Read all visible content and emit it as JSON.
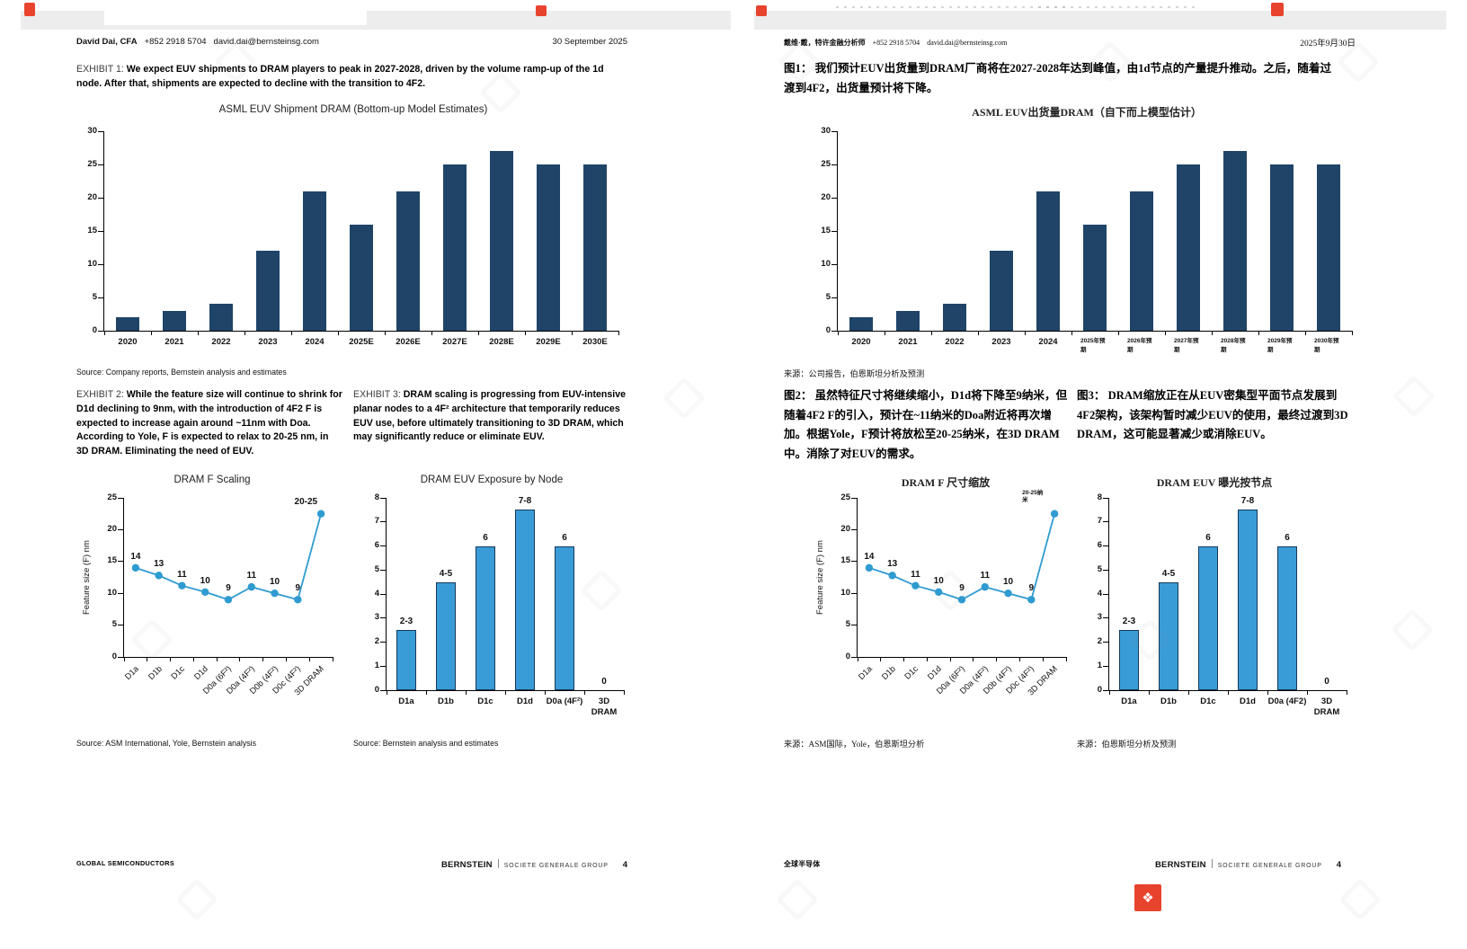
{
  "colors": {
    "navy_bar": "#1f4468",
    "blue_accent": "#2f9bd1",
    "blue_bar": "#3a9cd6",
    "bar_stroke": "#16395c",
    "logo_red": "#e8432d"
  },
  "icons": {
    "immersive_translate_logo": "❖"
  },
  "pages": {
    "en": {
      "header": {
        "analyst": "David Dai, CFA",
        "phone": "+852 2918 5704",
        "email": "david.dai@bernsteinsg.com",
        "date": "30 September 2025"
      },
      "exhibit1": {
        "label": "EXHIBIT 1:",
        "text": "We expect EUV shipments to DRAM players to peak in 2027-2028, driven by the volume ramp-up of the 1d node. After that, shipments are expected to decline with the transition to 4F2."
      },
      "source1": "Source: Company reports, Bernstein analysis and estimates",
      "exhibit2": {
        "label": "EXHIBIT 2:",
        "text": "While the feature size will continue to shrink for D1d declining to 9nm, with the introduction of 4F2 F is expected to increase again around ~11nm with Doa. According to Yole, F is expected to relax to 20-25 nm, in 3D DRAM. Eliminating the need of EUV."
      },
      "exhibit3": {
        "label": "EXHIBIT 3:",
        "text": "DRAM scaling is progressing from EUV-intensive planar nodes to a 4F² architecture that temporarily reduces EUV use, before ultimately transitioning to 3D DRAM, which may significantly reduce or eliminate EUV."
      },
      "source2": "Source: ASM International, Yole, Bernstein analysis",
      "source3": "Source: Bernstein analysis and estimates",
      "footer": {
        "left": "GLOBAL SEMICONDUCTORS",
        "brand": "BERNSTEIN",
        "group": "SOCIETE GENERALE GROUP",
        "page": "4"
      }
    },
    "zh": {
      "header": {
        "analyst": "戴维·戴，特许金融分析师",
        "phone": "+852 2918 5704",
        "email": "david.dai@bernsteinsg.com",
        "date": "2025年9月30日"
      },
      "exhibit1": {
        "label": "图1：",
        "text": "我们预计EUV出货量到DRAM厂商将在2027-2028年达到峰值，由1d节点的产量提升推动。之后，随着过渡到4F2，出货量预计将下降。"
      },
      "source1": "来源：公司报告，伯恩斯坦分析及预测",
      "exhibit2": {
        "label": "图2：",
        "text": "虽然特征尺寸将继续缩小，D1d将下降至9纳米，但随着4F2 F的引入，预计在~11纳米的Doa附近将再次增加。根据Yole，F预计将放松至20-25纳米，在3D DRAM中。消除了对EUV的需求。"
      },
      "exhibit3": {
        "label": "图3：",
        "text": "DRAM缩放正在从EUV密集型平面节点发展到4F2架构，该架构暂时减少EUV的使用，最终过渡到3D DRAM，这可能显著减少或消除EUV。"
      },
      "source2": "来源：ASM国际，Yole，伯恩斯坦分析",
      "source3": "来源：伯恩斯坦分析及预测",
      "footer": {
        "left": "全球半导体",
        "brand": "BERNSTEIN",
        "group": "SOCIETE GENERALE GROUP",
        "page": "4"
      }
    }
  },
  "chart_data": [
    {
      "id": "en_shipment",
      "type": "bar",
      "title": "ASML EUV Shipment DRAM (Bottom-up Model Estimates)",
      "categories": [
        "2020",
        "2021",
        "2022",
        "2023",
        "2024",
        "2025E",
        "2026E",
        "2027E",
        "2028E",
        "2029E",
        "2030E"
      ],
      "values": [
        2,
        3,
        4,
        12,
        21,
        16,
        21,
        25,
        27,
        25,
        25
      ],
      "ylim": [
        0,
        30
      ],
      "yticks": [
        0,
        5,
        10,
        15,
        20,
        25,
        30
      ],
      "bar_color": "#1f4468",
      "bar_frac": 0.5,
      "grid": false,
      "legend": "none"
    },
    {
      "id": "en_fscaling",
      "type": "line",
      "title": "DRAM F Scaling",
      "ylabel": "Feature size (F) nm",
      "categories": [
        "D1a",
        "D1b",
        "D1c",
        "D1d",
        "D0a (6F²)",
        "D0a (4F²)",
        "D0b (4F²)",
        "D0c (4F²)",
        "3D DRAM"
      ],
      "values": [
        14,
        12.8,
        11.2,
        10.2,
        9,
        11,
        10,
        9,
        22.5
      ],
      "labels": [
        "14",
        "13",
        "11",
        "10",
        "9",
        "11",
        "10",
        "9",
        "20-25"
      ],
      "ylim": [
        0,
        25
      ],
      "yticks": [
        0,
        5,
        10,
        15,
        20,
        25
      ],
      "line_color": "#2f9bd1",
      "cat_style": "rot",
      "grid": false,
      "legend": "none"
    },
    {
      "id": "en_exposure",
      "type": "bar",
      "title": "DRAM EUV Exposure by Node",
      "categories": [
        "D1a",
        "D1b",
        "D1c",
        "D1d",
        "D0a (4F²)",
        "3D\nDRAM"
      ],
      "values": [
        2.5,
        4.5,
        6,
        7.5,
        6,
        0
      ],
      "labels": [
        "2-3",
        "4-5",
        "6",
        "7-8",
        "6",
        "0"
      ],
      "ylim": [
        0,
        8
      ],
      "yticks": [
        0,
        1,
        2,
        3,
        4,
        5,
        6,
        7,
        8
      ],
      "bar_color": "#3a9cd6",
      "bar_stroke": "#16395c",
      "bar_frac": 0.52,
      "grid": false,
      "legend": "none"
    },
    {
      "id": "zh_shipment",
      "type": "bar",
      "title": "ASML EUV出货量DRAM（自下而上模型估计）",
      "categories": [
        "2020",
        "2021",
        "2022",
        "2023",
        "2024",
        "2025年预\n期",
        "2026年预\n期",
        "2027年预\n期",
        "2028年预\n期",
        "2029年预\n期",
        "2030年预\n期"
      ],
      "values": [
        2,
        3,
        4,
        12,
        21,
        16,
        21,
        25,
        27,
        25,
        25
      ],
      "ylim": [
        0,
        30
      ],
      "yticks": [
        0,
        5,
        10,
        15,
        20,
        25,
        30
      ],
      "bar_color": "#1f4468",
      "bar_frac": 0.5,
      "cat_tiny": true,
      "grid": false,
      "legend": "none"
    },
    {
      "id": "zh_fscaling",
      "type": "line",
      "title": "DRAM F 尺寸缩放",
      "ylabel": "Feature size (F) nm",
      "categories": [
        "D1a",
        "D1b",
        "D1c",
        "D1d",
        "D0a (6F²)",
        "D0a (4F²)",
        "D0b (4F²)",
        "D0c (4F²)",
        "3D DRAM"
      ],
      "values": [
        14,
        12.8,
        11.2,
        10.2,
        9,
        11,
        10,
        9,
        22.5
      ],
      "labels": [
        "14",
        "13",
        "11",
        "10",
        "9",
        "11",
        "10",
        "9",
        "20-25纳\n米"
      ],
      "ylim": [
        0,
        25
      ],
      "yticks": [
        0,
        5,
        10,
        15,
        20,
        25
      ],
      "line_color": "#2f9bd1",
      "cat_style": "rot",
      "grid": false,
      "legend": "none"
    },
    {
      "id": "zh_exposure",
      "type": "bar",
      "title": "DRAM EUV 曝光按节点",
      "categories": [
        "D1a",
        "D1b",
        "D1c",
        "D1d",
        "D0a (4F2)",
        "3D\nDRAM"
      ],
      "values": [
        2.5,
        4.5,
        6,
        7.5,
        6,
        0
      ],
      "labels": [
        "2-3",
        "4-5",
        "6",
        "7-8",
        "6",
        "0"
      ],
      "ylim": [
        0,
        8
      ],
      "yticks": [
        0,
        1,
        2,
        3,
        4,
        5,
        6,
        7,
        8
      ],
      "bar_color": "#3a9cd6",
      "bar_stroke": "#16395c",
      "bar_frac": 0.52,
      "grid": false,
      "legend": "none"
    }
  ]
}
